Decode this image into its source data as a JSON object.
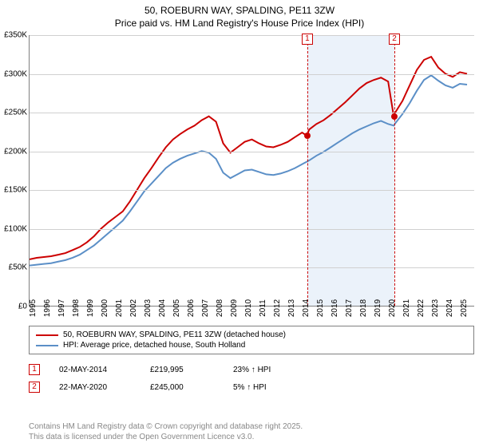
{
  "title": {
    "line1": "50, ROEBURN WAY, SPALDING, PE11 3ZW",
    "line2": "Price paid vs. HM Land Registry's House Price Index (HPI)"
  },
  "chart": {
    "type": "line",
    "background_color": "#ffffff",
    "grid_color": "#d0d0d0",
    "axis_color": "#808080",
    "x_range": [
      1995,
      2026
    ],
    "y_range": [
      0,
      350000
    ],
    "y_ticks": [
      0,
      50000,
      100000,
      150000,
      200000,
      250000,
      300000,
      350000
    ],
    "y_tick_labels": [
      "£0",
      "£50K",
      "£100K",
      "£150K",
      "£200K",
      "£250K",
      "£300K",
      "£350K"
    ],
    "x_ticks": [
      1995,
      1996,
      1997,
      1998,
      1999,
      2000,
      2001,
      2002,
      2003,
      2004,
      2005,
      2006,
      2007,
      2008,
      2009,
      2010,
      2011,
      2012,
      2013,
      2014,
      2015,
      2016,
      2017,
      2018,
      2019,
      2020,
      2021,
      2022,
      2023,
      2024,
      2025
    ],
    "shaded": {
      "x_from": 2014.33,
      "x_to": 2020.39,
      "color": "#dbe7f5"
    },
    "series": [
      {
        "name": "price_paid",
        "color": "#cc0000",
        "width": 2,
        "points": [
          [
            1995,
            60000
          ],
          [
            1995.5,
            62000
          ],
          [
            1996,
            63000
          ],
          [
            1996.5,
            64000
          ],
          [
            1997,
            66000
          ],
          [
            1997.5,
            68000
          ],
          [
            1998,
            72000
          ],
          [
            1998.5,
            76000
          ],
          [
            1999,
            82000
          ],
          [
            1999.5,
            90000
          ],
          [
            2000,
            100000
          ],
          [
            2000.5,
            108000
          ],
          [
            2001,
            115000
          ],
          [
            2001.5,
            122000
          ],
          [
            2002,
            135000
          ],
          [
            2002.5,
            150000
          ],
          [
            2003,
            165000
          ],
          [
            2003.5,
            178000
          ],
          [
            2004,
            192000
          ],
          [
            2004.5,
            205000
          ],
          [
            2005,
            215000
          ],
          [
            2005.5,
            222000
          ],
          [
            2006,
            228000
          ],
          [
            2006.5,
            233000
          ],
          [
            2007,
            240000
          ],
          [
            2007.5,
            245000
          ],
          [
            2008,
            238000
          ],
          [
            2008.5,
            210000
          ],
          [
            2009,
            198000
          ],
          [
            2009.5,
            205000
          ],
          [
            2010,
            212000
          ],
          [
            2010.5,
            215000
          ],
          [
            2011,
            210000
          ],
          [
            2011.5,
            206000
          ],
          [
            2012,
            205000
          ],
          [
            2012.5,
            208000
          ],
          [
            2013,
            212000
          ],
          [
            2013.5,
            218000
          ],
          [
            2014,
            224000
          ],
          [
            2014.33,
            219995
          ],
          [
            2014.5,
            228000
          ],
          [
            2015,
            235000
          ],
          [
            2015.5,
            240000
          ],
          [
            2016,
            247000
          ],
          [
            2016.5,
            255000
          ],
          [
            2017,
            263000
          ],
          [
            2017.5,
            272000
          ],
          [
            2018,
            281000
          ],
          [
            2018.5,
            288000
          ],
          [
            2019,
            292000
          ],
          [
            2019.5,
            295000
          ],
          [
            2020,
            290000
          ],
          [
            2020.39,
            245000
          ],
          [
            2020.5,
            250000
          ],
          [
            2021,
            265000
          ],
          [
            2021.5,
            285000
          ],
          [
            2022,
            305000
          ],
          [
            2022.5,
            318000
          ],
          [
            2023,
            322000
          ],
          [
            2023.5,
            308000
          ],
          [
            2024,
            300000
          ],
          [
            2024.5,
            296000
          ],
          [
            2025,
            302000
          ],
          [
            2025.5,
            300000
          ]
        ]
      },
      {
        "name": "hpi",
        "color": "#5b8fc7",
        "width": 2,
        "points": [
          [
            1995,
            52000
          ],
          [
            1995.5,
            53000
          ],
          [
            1996,
            54000
          ],
          [
            1996.5,
            55000
          ],
          [
            1997,
            57000
          ],
          [
            1997.5,
            59000
          ],
          [
            1998,
            62000
          ],
          [
            1998.5,
            66000
          ],
          [
            1999,
            72000
          ],
          [
            1999.5,
            78000
          ],
          [
            2000,
            86000
          ],
          [
            2000.5,
            94000
          ],
          [
            2001,
            102000
          ],
          [
            2001.5,
            110000
          ],
          [
            2002,
            122000
          ],
          [
            2002.5,
            135000
          ],
          [
            2003,
            148000
          ],
          [
            2003.5,
            158000
          ],
          [
            2004,
            168000
          ],
          [
            2004.5,
            178000
          ],
          [
            2005,
            185000
          ],
          [
            2005.5,
            190000
          ],
          [
            2006,
            194000
          ],
          [
            2006.5,
            197000
          ],
          [
            2007,
            200000
          ],
          [
            2007.5,
            198000
          ],
          [
            2008,
            190000
          ],
          [
            2008.5,
            172000
          ],
          [
            2009,
            165000
          ],
          [
            2009.5,
            170000
          ],
          [
            2010,
            175000
          ],
          [
            2010.5,
            176000
          ],
          [
            2011,
            173000
          ],
          [
            2011.5,
            170000
          ],
          [
            2012,
            169000
          ],
          [
            2012.5,
            171000
          ],
          [
            2013,
            174000
          ],
          [
            2013.5,
            178000
          ],
          [
            2014,
            183000
          ],
          [
            2014.5,
            188000
          ],
          [
            2015,
            194000
          ],
          [
            2015.5,
            199000
          ],
          [
            2016,
            205000
          ],
          [
            2016.5,
            211000
          ],
          [
            2017,
            217000
          ],
          [
            2017.5,
            223000
          ],
          [
            2018,
            228000
          ],
          [
            2018.5,
            232000
          ],
          [
            2019,
            236000
          ],
          [
            2019.5,
            239000
          ],
          [
            2020,
            235000
          ],
          [
            2020.39,
            233000
          ],
          [
            2020.5,
            236000
          ],
          [
            2021,
            248000
          ],
          [
            2021.5,
            262000
          ],
          [
            2022,
            278000
          ],
          [
            2022.5,
            292000
          ],
          [
            2023,
            298000
          ],
          [
            2023.5,
            291000
          ],
          [
            2024,
            285000
          ],
          [
            2024.5,
            282000
          ],
          [
            2025,
            287000
          ],
          [
            2025.5,
            286000
          ]
        ]
      }
    ],
    "markers": [
      {
        "n": "1",
        "x": 2014.33,
        "y": 219995,
        "dot_color": "#cc0000"
      },
      {
        "n": "2",
        "x": 2020.39,
        "y": 245000,
        "dot_color": "#cc0000"
      }
    ]
  },
  "legend": {
    "items": [
      {
        "color": "#cc0000",
        "label": "50, ROEBURN WAY, SPALDING, PE11 3ZW (detached house)"
      },
      {
        "color": "#5b8fc7",
        "label": "HPI: Average price, detached house, South Holland"
      }
    ]
  },
  "data_points": [
    {
      "n": "1",
      "date": "02-MAY-2014",
      "price": "£219,995",
      "delta": "23% ↑ HPI"
    },
    {
      "n": "2",
      "date": "22-MAY-2020",
      "price": "£245,000",
      "delta": "5% ↑ HPI"
    }
  ],
  "footer": {
    "line1": "Contains HM Land Registry data © Crown copyright and database right 2025.",
    "line2": "This data is licensed under the Open Government Licence v3.0."
  }
}
